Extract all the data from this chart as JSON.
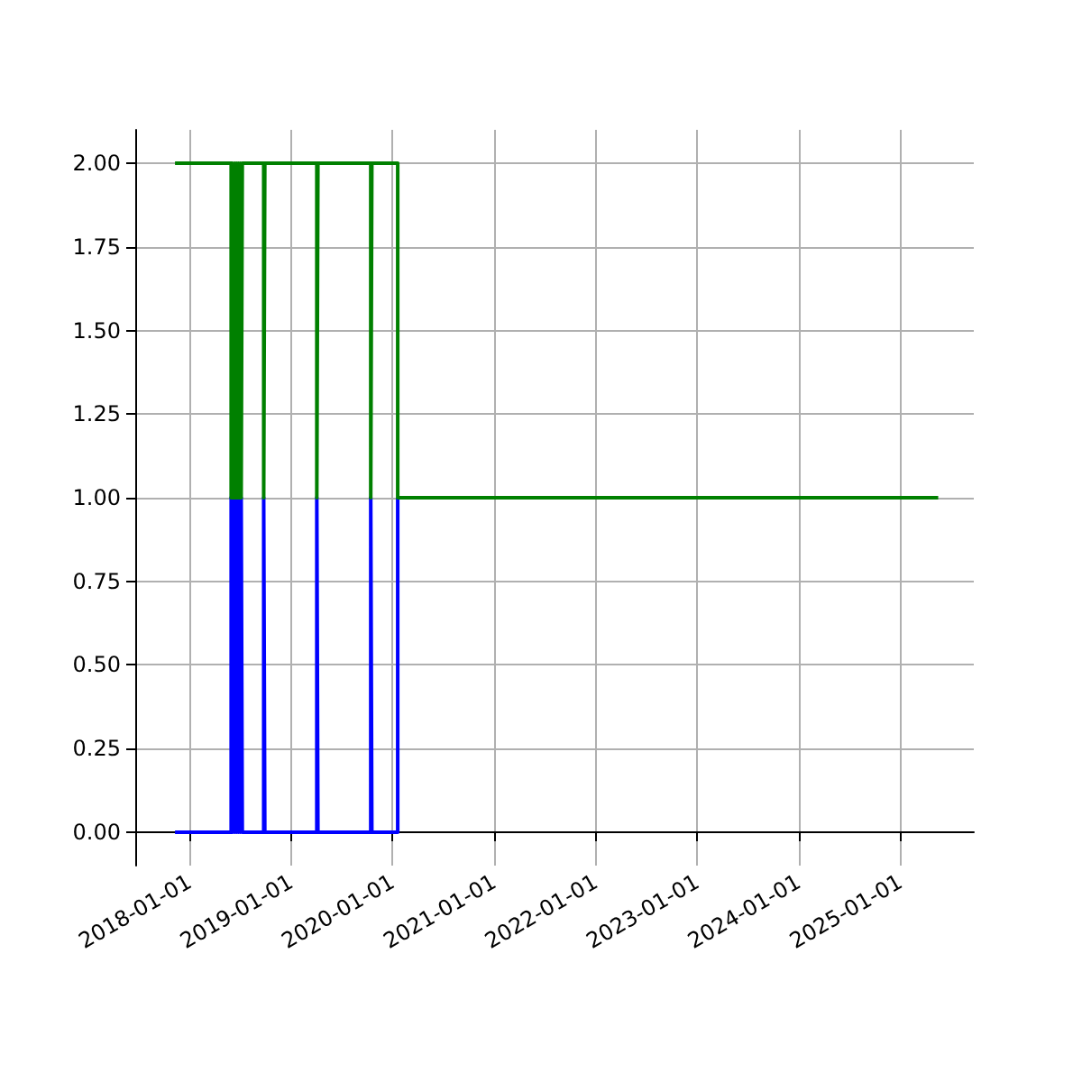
{
  "chart_data": {
    "type": "step",
    "series": [
      {
        "color": "#0000ff",
        "x": [
          "2017-11-10",
          "2018-05-31",
          "2018-06-04",
          "2018-06-08",
          "2018-06-12",
          "2018-06-15",
          "2018-06-19",
          "2018-06-22",
          "2018-06-26",
          "2018-06-29",
          "2018-07-03",
          "2018-07-06",
          "2018-07-10",
          "2018-09-25",
          "2018-09-29",
          "2019-04-04",
          "2019-04-08",
          "2019-10-15",
          "2019-10-19",
          "2020-01-20"
        ],
        "values": [
          0,
          1,
          0,
          1,
          0,
          1,
          0,
          1,
          0,
          1,
          0,
          1,
          0,
          1,
          0,
          1,
          0,
          1,
          0,
          1
        ]
      },
      {
        "color": "#008000",
        "x": [
          "2017-11-10",
          "2018-05-31",
          "2018-06-04",
          "2018-06-08",
          "2018-06-12",
          "2018-06-15",
          "2018-06-19",
          "2018-06-22",
          "2018-06-26",
          "2018-06-29",
          "2018-07-03",
          "2018-07-06",
          "2018-07-10",
          "2018-09-25",
          "2018-09-29",
          "2019-04-04",
          "2019-04-08",
          "2019-10-15",
          "2019-10-19",
          "2020-01-20",
          "2025-05-17"
        ],
        "values": [
          2,
          1,
          2,
          1,
          2,
          1,
          2,
          1,
          2,
          1,
          2,
          1,
          2,
          1,
          2,
          1,
          2,
          1,
          2,
          1,
          1
        ]
      }
    ],
    "xlim": [
      "2017-06-20",
      "2025-09-22"
    ],
    "xticks": [
      "2018-01-01",
      "2019-01-01",
      "2020-01-01",
      "2021-01-01",
      "2022-01-01",
      "2023-01-01",
      "2024-01-01",
      "2025-01-01"
    ],
    "ylim": [
      -0.1,
      2.1
    ],
    "yticks": [
      {
        "value": 0,
        "label": "0.00"
      },
      {
        "value": 0.25,
        "label": "0.25"
      },
      {
        "value": 0.5,
        "label": "0.50"
      },
      {
        "value": 0.75,
        "label": "0.75"
      },
      {
        "value": 1,
        "label": "1.00"
      },
      {
        "value": 1.25,
        "label": "1.25"
      },
      {
        "value": 1.5,
        "label": "1.50"
      },
      {
        "value": 1.75,
        "label": "1.75"
      },
      {
        "value": 2,
        "label": "2.00"
      }
    ],
    "grid": true,
    "line_style": "solid",
    "marker": "none"
  }
}
